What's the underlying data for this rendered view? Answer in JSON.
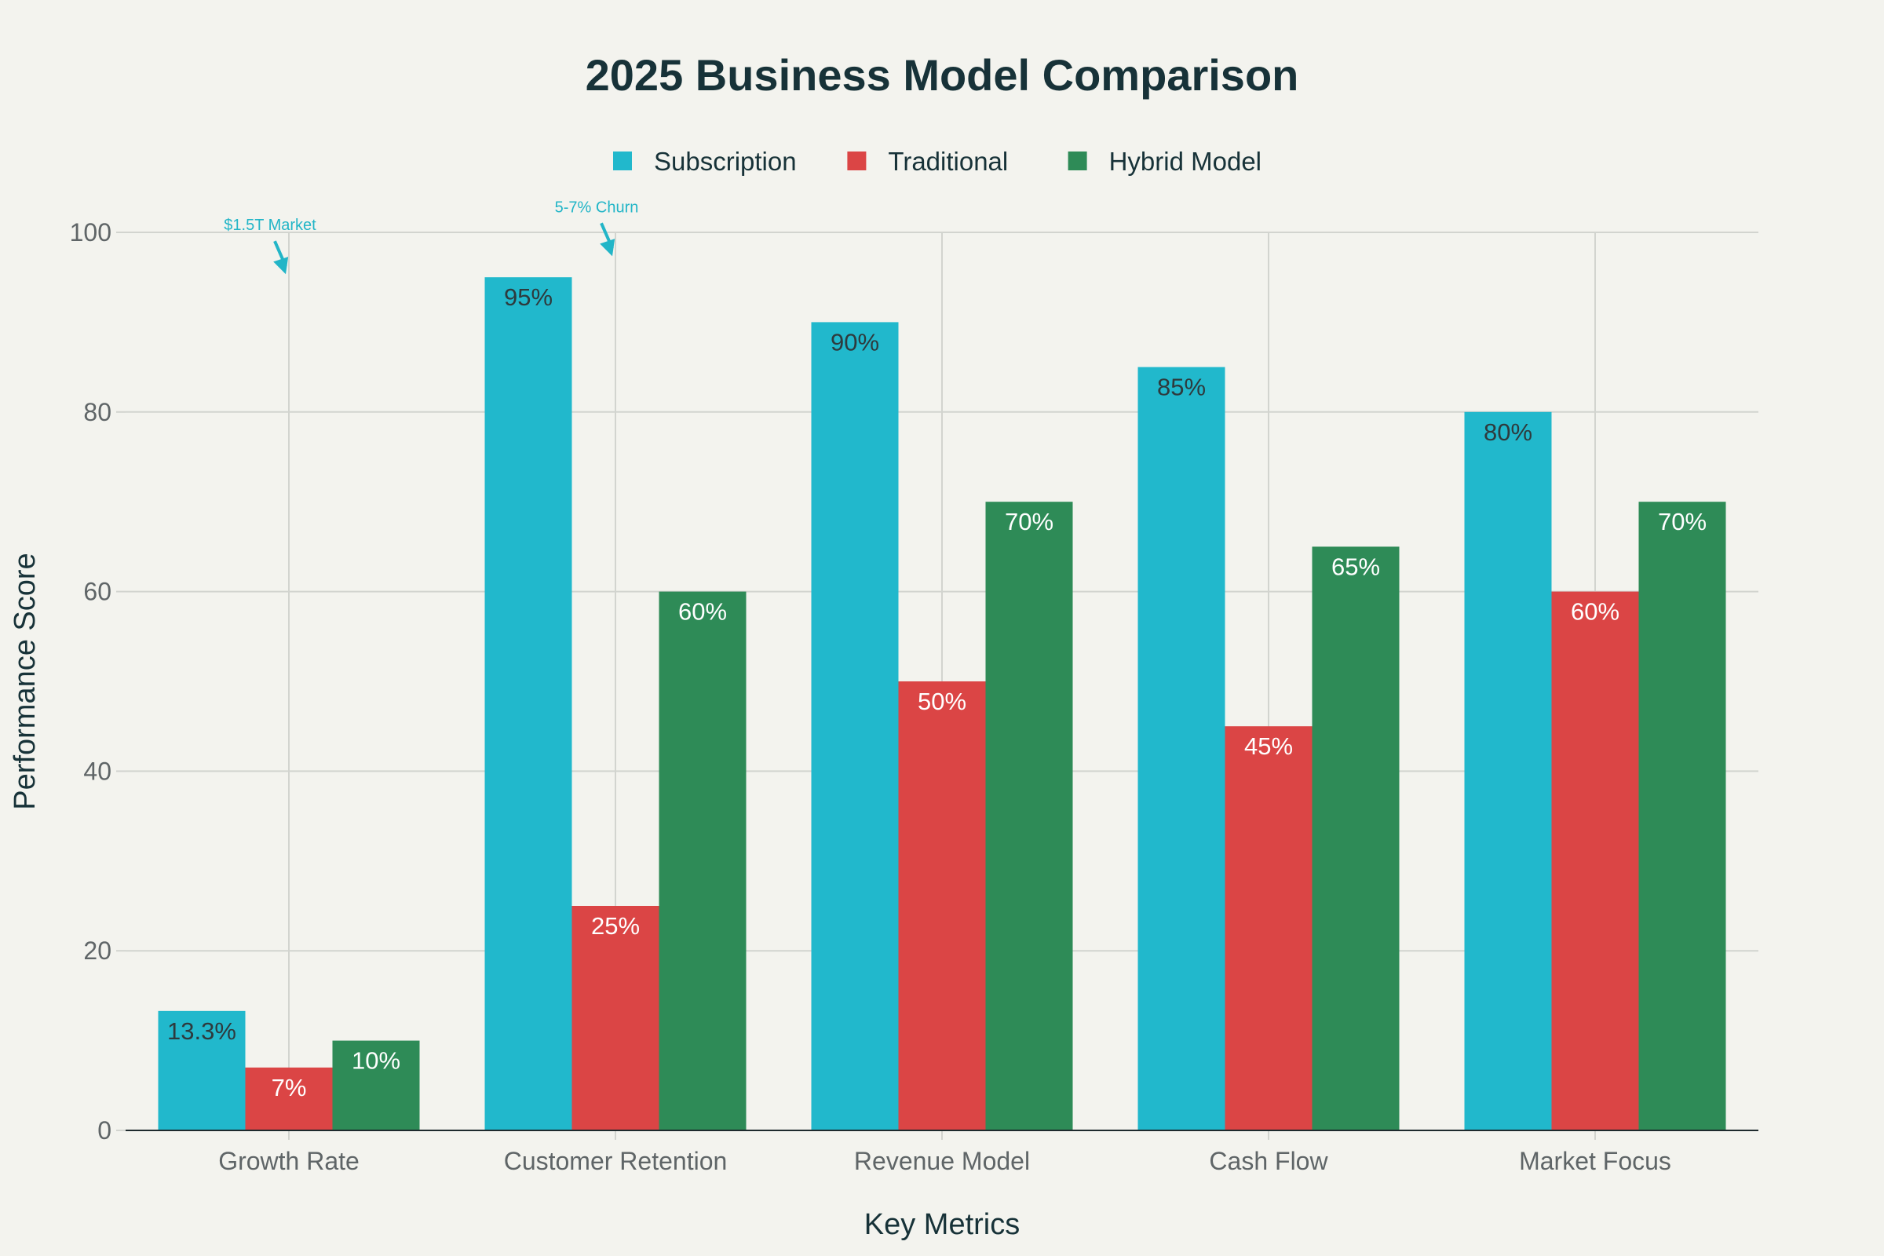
{
  "chart_data": {
    "type": "bar",
    "title": "2025 Business Model Comparison",
    "xlabel": "Key Metrics",
    "ylabel": "Performance Score",
    "ylim": [
      0,
      100
    ],
    "yticks": [
      0,
      20,
      40,
      60,
      80,
      100
    ],
    "grid": true,
    "legend_position": "top-center",
    "categories": [
      "Growth Rate",
      "Customer Retention",
      "Revenue Model",
      "Cash Flow",
      "Market Focus"
    ],
    "series": [
      {
        "name": "Subscription",
        "color": "#21b8cc",
        "label_color": "#2e3a3d",
        "values": [
          13.3,
          95,
          90,
          85,
          80
        ],
        "labels": [
          "13.3%",
          "95%",
          "90%",
          "85%",
          "80%"
        ]
      },
      {
        "name": "Traditional",
        "color": "#db4545",
        "label_color": "#ffffff",
        "values": [
          7,
          25,
          50,
          45,
          60
        ],
        "labels": [
          "7%",
          "25%",
          "50%",
          "45%",
          "60%"
        ]
      },
      {
        "name": "Hybrid Model",
        "color": "#2e8b57",
        "label_color": "#ffffff",
        "values": [
          10,
          60,
          70,
          65,
          70
        ],
        "labels": [
          "10%",
          "60%",
          "70%",
          "65%",
          "70%"
        ]
      }
    ],
    "annotations": [
      {
        "text": "$1.5T Market",
        "category_index": 0,
        "y": 95,
        "color": "#22b5c7"
      },
      {
        "text": "5-7% Churn",
        "category_index": 1,
        "y": 97,
        "color": "#22b5c7"
      }
    ]
  }
}
